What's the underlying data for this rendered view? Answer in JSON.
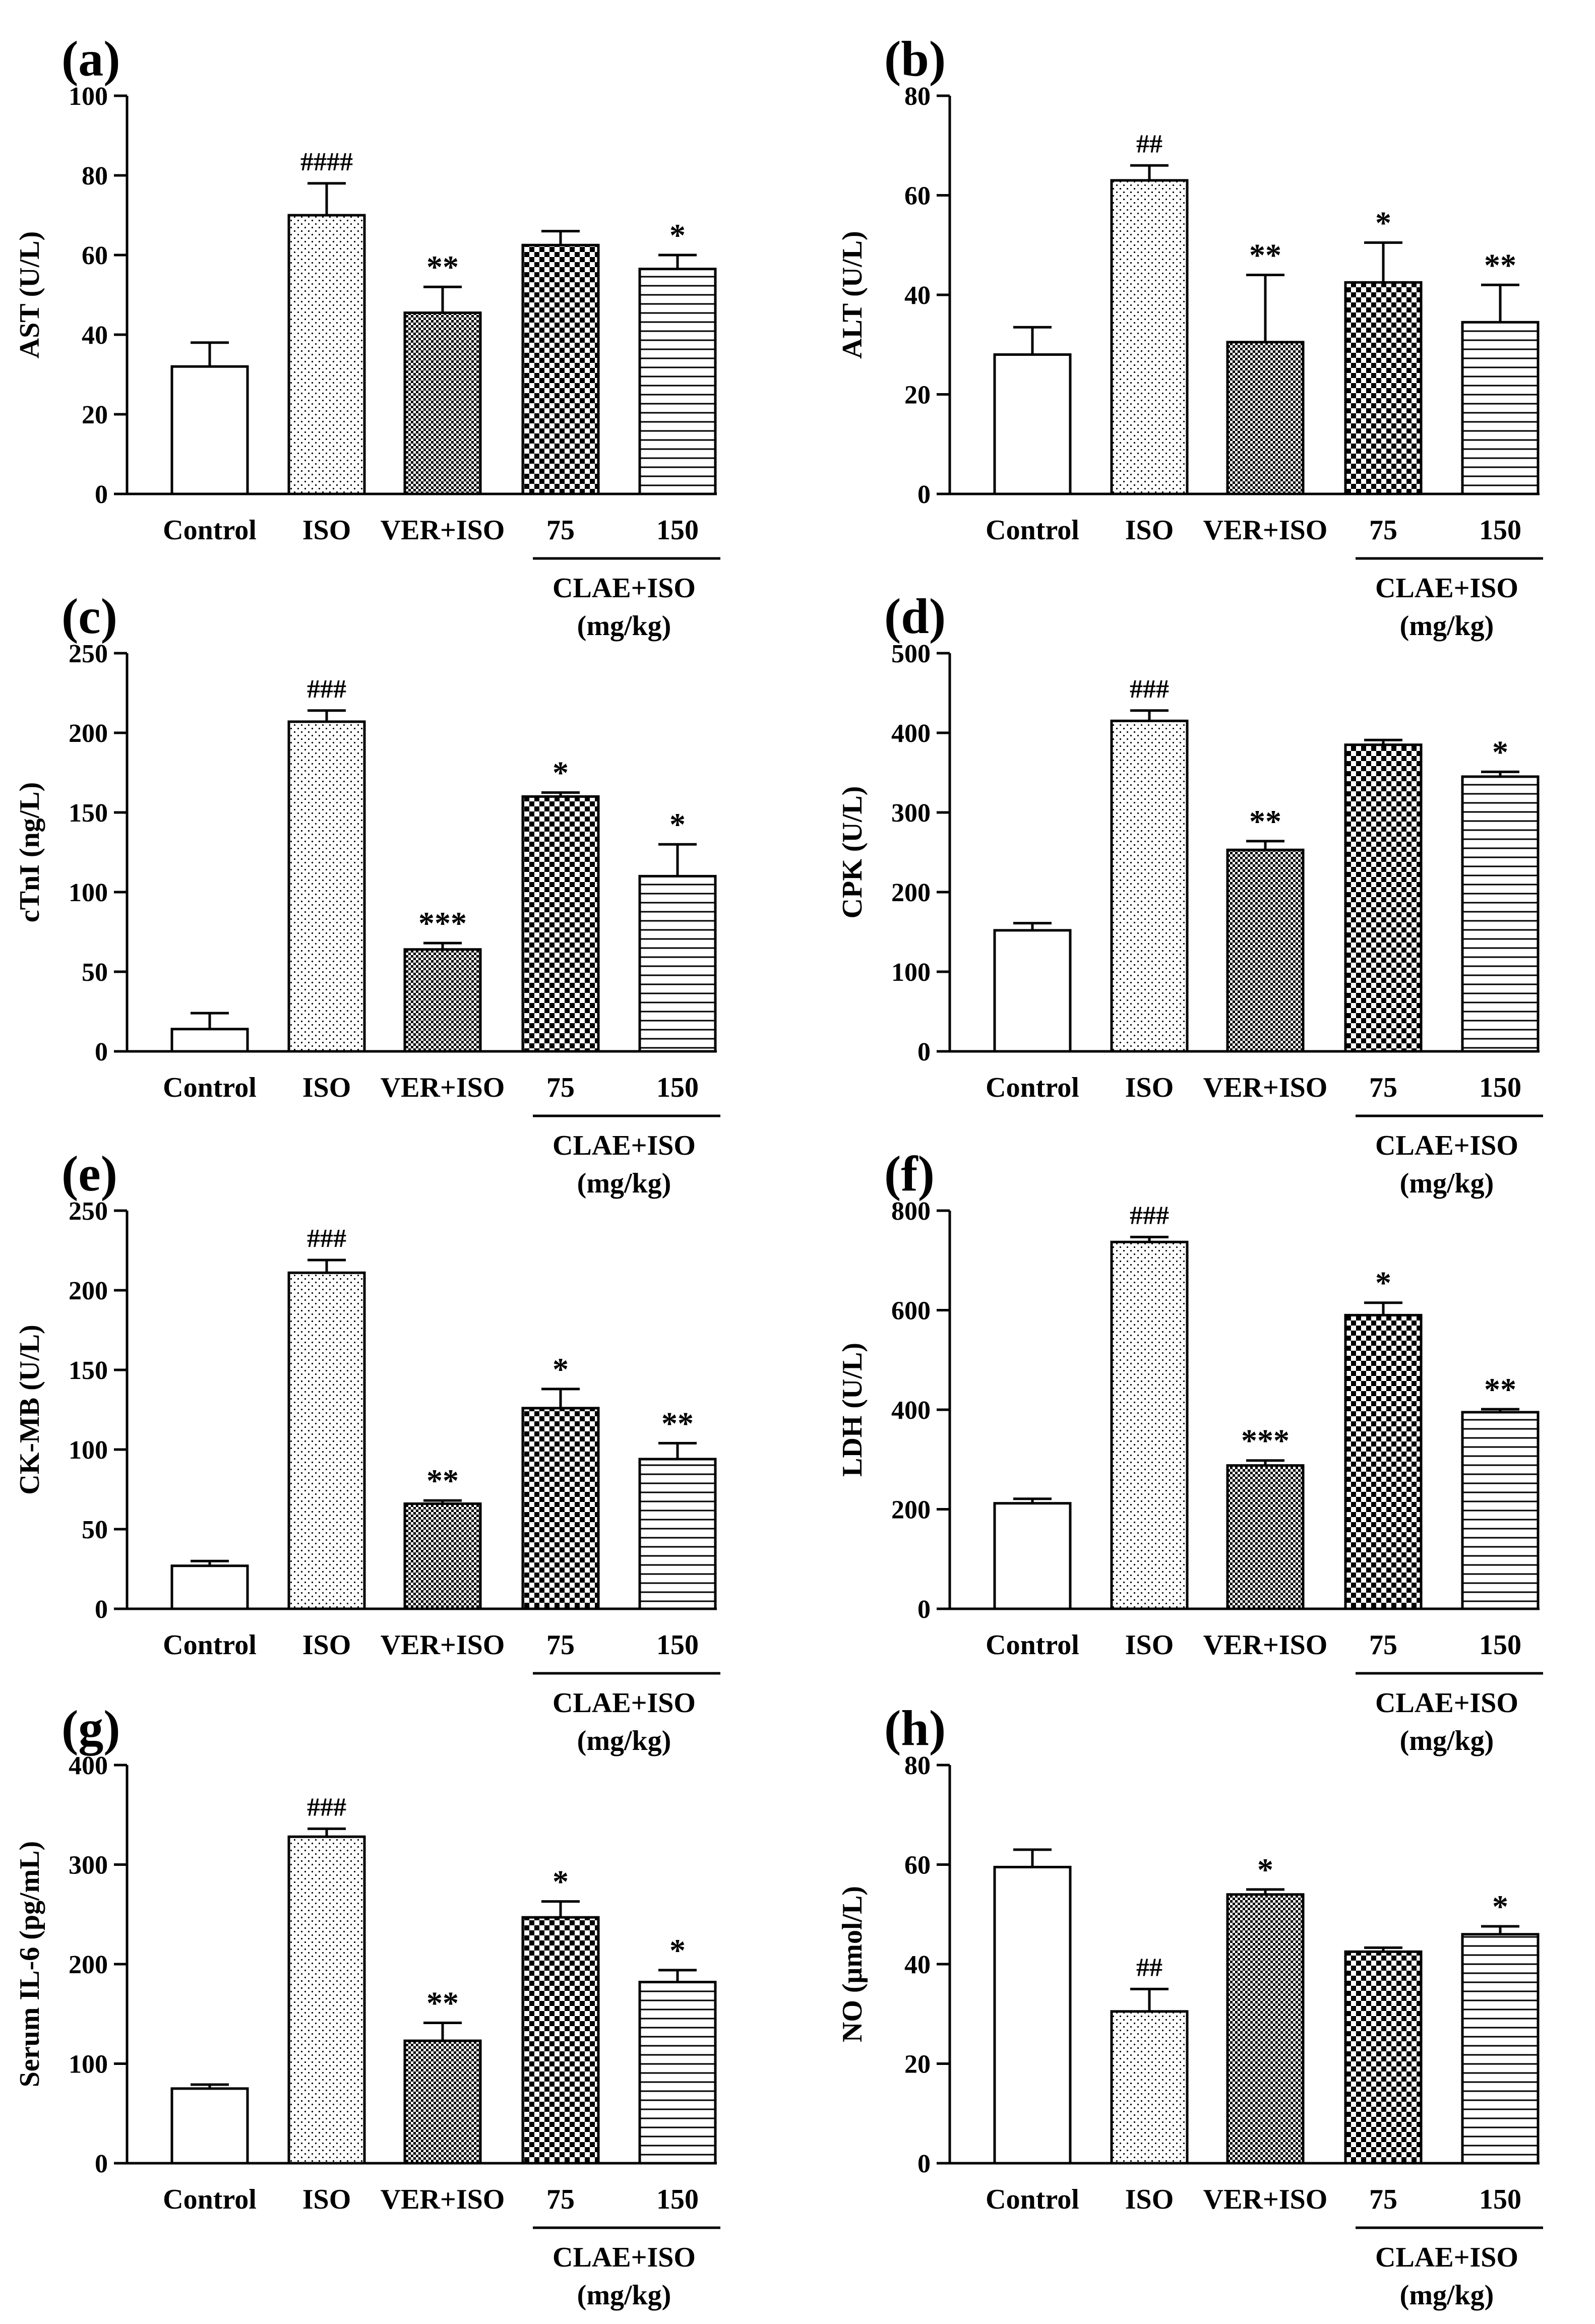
{
  "chart_data": [
    {
      "panel": "(a)",
      "type": "bar",
      "ylabel": "AST (U/L)",
      "ylim": [
        0,
        100
      ],
      "yticks": [
        0,
        20,
        40,
        60,
        80,
        100
      ],
      "categories": [
        "Control",
        "ISO",
        "VER+ISO",
        "75",
        "150"
      ],
      "values": [
        32,
        70,
        45.5,
        62.5,
        56.5
      ],
      "errors": [
        6,
        8,
        6.5,
        3.5,
        3.5
      ],
      "marks": [
        "",
        "####",
        "**",
        "",
        "*"
      ],
      "group_label": "CLAE+ISO",
      "group_unit": "(mg/kg)"
    },
    {
      "panel": "(b)",
      "type": "bar",
      "ylabel": "ALT (U/L)",
      "ylim": [
        0,
        80
      ],
      "yticks": [
        0,
        20,
        40,
        60,
        80
      ],
      "categories": [
        "Control",
        "ISO",
        "VER+ISO",
        "75",
        "150"
      ],
      "values": [
        28,
        63,
        30.5,
        42.5,
        34.5
      ],
      "errors": [
        5.5,
        3,
        13.5,
        8,
        7.5
      ],
      "marks": [
        "",
        "##",
        "**",
        "*",
        "**"
      ],
      "group_label": "CLAE+ISO",
      "group_unit": "(mg/kg)"
    },
    {
      "panel": "(c)",
      "type": "bar",
      "ylabel": "cTnI (ng/L)",
      "ylim": [
        0,
        250
      ],
      "yticks": [
        0,
        50,
        100,
        150,
        200,
        250
      ],
      "categories": [
        "Control",
        "ISO",
        "VER+ISO",
        "75",
        "150"
      ],
      "values": [
        14,
        207,
        64,
        160,
        110
      ],
      "errors": [
        10,
        7,
        4,
        2.5,
        20
      ],
      "marks": [
        "",
        "###",
        "***",
        "*",
        "*"
      ],
      "group_label": "CLAE+ISO",
      "group_unit": "(mg/kg)"
    },
    {
      "panel": "(d)",
      "type": "bar",
      "ylabel": "CPK (U/L)",
      "ylim": [
        0,
        500
      ],
      "yticks": [
        0,
        100,
        200,
        300,
        400,
        500
      ],
      "categories": [
        "Control",
        "ISO",
        "VER+ISO",
        "75",
        "150"
      ],
      "values": [
        152,
        415,
        253,
        385,
        345
      ],
      "errors": [
        9,
        13,
        11,
        6,
        6
      ],
      "marks": [
        "",
        "###",
        "**",
        "",
        "*"
      ],
      "group_label": "CLAE+ISO",
      "group_unit": "(mg/kg)"
    },
    {
      "panel": "(e)",
      "type": "bar",
      "ylabel": "CK-MB (U/L)",
      "ylim": [
        0,
        250
      ],
      "yticks": [
        0,
        50,
        100,
        150,
        200,
        250
      ],
      "categories": [
        "Control",
        "ISO",
        "VER+ISO",
        "75",
        "150"
      ],
      "values": [
        27,
        211,
        66,
        126,
        94
      ],
      "errors": [
        3,
        8,
        2,
        12,
        10
      ],
      "marks": [
        "",
        "###",
        "**",
        "*",
        "**"
      ],
      "group_label": "CLAE+ISO",
      "group_unit": "(mg/kg)"
    },
    {
      "panel": "(f)",
      "type": "bar",
      "ylabel": "LDH (U/L)",
      "ylim": [
        0,
        800
      ],
      "yticks": [
        0,
        200,
        400,
        600,
        800
      ],
      "categories": [
        "Control",
        "ISO",
        "VER+ISO",
        "75",
        "150"
      ],
      "values": [
        212,
        737,
        288,
        590,
        395
      ],
      "errors": [
        9,
        10,
        10,
        25,
        6
      ],
      "marks": [
        "",
        "###",
        "***",
        "*",
        "**"
      ],
      "group_label": "CLAE+ISO",
      "group_unit": "(mg/kg)"
    },
    {
      "panel": "(g)",
      "type": "bar",
      "ylabel": "Serum IL-6 (pg/mL)",
      "ylim": [
        0,
        400
      ],
      "yticks": [
        0,
        100,
        200,
        300,
        400
      ],
      "categories": [
        "Control",
        "ISO",
        "VER+ISO",
        "75",
        "150"
      ],
      "values": [
        75,
        328,
        123,
        247,
        182
      ],
      "errors": [
        4,
        8,
        18,
        16,
        12
      ],
      "marks": [
        "",
        "###",
        "**",
        "*",
        "*"
      ],
      "group_label": "CLAE+ISO",
      "group_unit": "(mg/kg)"
    },
    {
      "panel": "(h)",
      "type": "bar",
      "ylabel": "NO (μmol/L)",
      "ylim": [
        0,
        80
      ],
      "yticks": [
        0,
        20,
        40,
        60,
        80
      ],
      "categories": [
        "Control",
        "ISO",
        "VER+ISO",
        "75",
        "150"
      ],
      "values": [
        59.5,
        30.5,
        54,
        42.5,
        46
      ],
      "errors": [
        3.5,
        4.5,
        1,
        0.8,
        1.6
      ],
      "marks": [
        "",
        "##",
        "*",
        "",
        "*"
      ],
      "group_label": "CLAE+ISO",
      "group_unit": "(mg/kg)"
    }
  ]
}
